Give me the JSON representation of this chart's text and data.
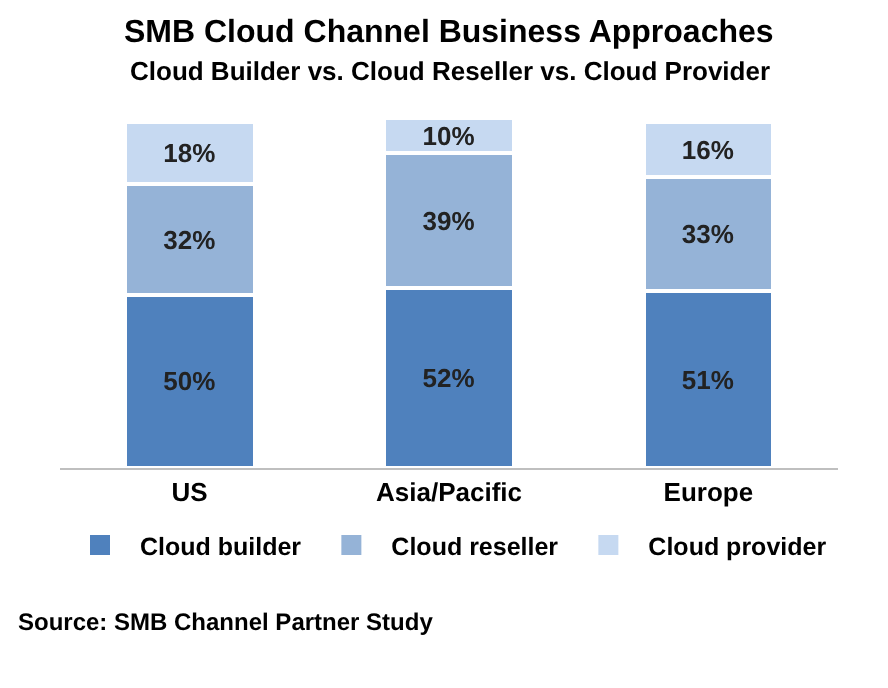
{
  "chart_data": {
    "type": "bar",
    "title": "SMB Cloud Channel Business Approaches",
    "subtitle": "Cloud Builder vs. Cloud Reseller vs. Cloud Provider",
    "categories": [
      "US",
      "Asia/Pacific",
      "Europe"
    ],
    "stacked": true,
    "legend": "bottom",
    "grid": false,
    "tick_labels": "x",
    "series": [
      {
        "name": "Cloud builder",
        "color": "#4f81bd",
        "values": [
          50,
          52,
          51
        ],
        "value_labels": [
          "50%",
          "52%",
          "51%"
        ]
      },
      {
        "name": "Cloud reseller",
        "color": "#95b3d7",
        "values": [
          32,
          39,
          33
        ],
        "value_labels": [
          "32%",
          "39%",
          "33%"
        ]
      },
      {
        "name": "Cloud provider",
        "color": "#c6d9f1",
        "values": [
          18,
          10,
          16
        ],
        "value_labels": [
          "18%",
          "10%",
          "16%"
        ]
      }
    ],
    "annotations": [
      "Source: SMB Channel Partner Study"
    ]
  }
}
